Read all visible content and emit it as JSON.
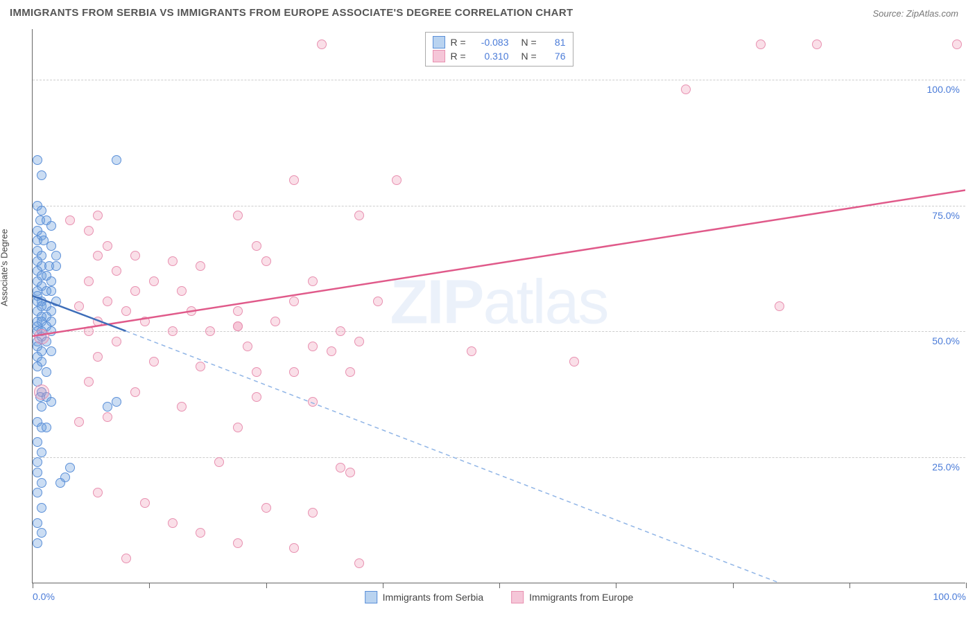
{
  "title": "IMMIGRANTS FROM SERBIA VS IMMIGRANTS FROM EUROPE ASSOCIATE'S DEGREE CORRELATION CHART",
  "source_label": "Source: ZipAtlas.com",
  "watermark": {
    "prefix": "ZIP",
    "suffix": "atlas"
  },
  "chart": {
    "type": "scatter",
    "xlim": [
      0,
      100
    ],
    "ylim": [
      0,
      110
    ],
    "y_gridlines": [
      25,
      50,
      75,
      100
    ],
    "y_tick_labels": [
      "25.0%",
      "50.0%",
      "75.0%",
      "100.0%"
    ],
    "x_ticks": [
      0,
      12.5,
      25,
      37.5,
      50,
      62.5,
      75,
      87.5,
      100
    ],
    "x_tick_labels": {
      "0": "0.0%",
      "100": "100.0%"
    },
    "ylabel": "Associate's Degree",
    "background_color": "#ffffff",
    "border_color": "#666666",
    "grid_color": "#cccccc",
    "axis_label_color": "#4a7bd8",
    "point_radius_small": 7,
    "point_radius_large": 11,
    "series": [
      {
        "name": "Immigrants from Serbia",
        "color_fill": "rgba(106,158,222,0.35)",
        "color_stroke": "#5a8fd8",
        "swatch_fill": "#b9d3f0",
        "swatch_stroke": "#5a8fd8",
        "R": "-0.083",
        "N": "81",
        "trend": {
          "x1": 0,
          "y1": 57,
          "x2_solid": 10,
          "y2_solid": 50,
          "x2": 80,
          "y2": 0,
          "dash": true,
          "stroke_solid": "#3d6db8",
          "stroke_dash": "#8fb4e6",
          "width": 2
        },
        "points": [
          [
            0.5,
            84
          ],
          [
            9,
            84
          ],
          [
            1,
            81
          ],
          [
            0.5,
            75
          ],
          [
            1,
            74
          ],
          [
            0.8,
            72
          ],
          [
            1.5,
            72
          ],
          [
            2,
            71
          ],
          [
            0.5,
            70
          ],
          [
            1,
            69
          ],
          [
            0.5,
            68
          ],
          [
            1.2,
            68
          ],
          [
            2,
            67
          ],
          [
            0.5,
            66
          ],
          [
            1,
            65
          ],
          [
            2.5,
            65
          ],
          [
            0.5,
            64
          ],
          [
            1,
            63
          ],
          [
            1.8,
            63
          ],
          [
            2.5,
            63
          ],
          [
            0.5,
            62
          ],
          [
            1,
            61
          ],
          [
            1.5,
            61
          ],
          [
            2,
            60
          ],
          [
            0.5,
            60
          ],
          [
            1,
            59
          ],
          [
            0.5,
            58
          ],
          [
            1.5,
            58
          ],
          [
            2,
            58
          ],
          [
            0.5,
            57
          ],
          [
            1,
            56
          ],
          [
            2.5,
            56
          ],
          [
            0.5,
            56
          ],
          [
            1,
            55
          ],
          [
            1.5,
            55
          ],
          [
            2,
            54
          ],
          [
            0.5,
            54
          ],
          [
            1,
            53
          ],
          [
            1.5,
            53
          ],
          [
            0.5,
            52
          ],
          [
            1,
            52
          ],
          [
            2,
            52
          ],
          [
            0.5,
            51
          ],
          [
            1.5,
            51
          ],
          [
            1,
            50
          ],
          [
            0.5,
            50
          ],
          [
            2,
            50
          ],
          [
            1,
            49
          ],
          [
            0.5,
            48
          ],
          [
            1.5,
            48
          ],
          [
            0.5,
            47
          ],
          [
            1,
            46
          ],
          [
            2,
            46
          ],
          [
            0.5,
            45
          ],
          [
            1,
            44
          ],
          [
            0.5,
            43
          ],
          [
            1.5,
            42
          ],
          [
            0.5,
            40
          ],
          [
            1,
            38
          ],
          [
            0.8,
            37
          ],
          [
            1.5,
            37
          ],
          [
            2,
            36
          ],
          [
            9,
            36
          ],
          [
            8,
            35
          ],
          [
            1,
            35
          ],
          [
            0.5,
            32
          ],
          [
            1,
            31
          ],
          [
            1.5,
            31
          ],
          [
            0.5,
            28
          ],
          [
            1,
            26
          ],
          [
            0.5,
            24
          ],
          [
            4,
            23
          ],
          [
            0.5,
            22
          ],
          [
            3.5,
            21
          ],
          [
            3,
            20
          ],
          [
            1,
            20
          ],
          [
            0.5,
            18
          ],
          [
            1,
            15
          ],
          [
            0.5,
            12
          ],
          [
            1,
            10
          ],
          [
            0.5,
            8
          ]
        ]
      },
      {
        "name": "Immigrants from Europe",
        "color_fill": "rgba(240,150,180,0.30)",
        "color_stroke": "#e890b0",
        "swatch_fill": "#f5c6d8",
        "swatch_stroke": "#e890b0",
        "R": "0.310",
        "N": "76",
        "trend": {
          "x1": 0,
          "y1": 49,
          "x2": 100,
          "y2": 78,
          "dash": false,
          "stroke": "#e05a8a",
          "width": 2.5
        },
        "points": [
          [
            31,
            107
          ],
          [
            99,
            107
          ],
          [
            84,
            107
          ],
          [
            70,
            98
          ],
          [
            78,
            107
          ],
          [
            28,
            80
          ],
          [
            39,
            80
          ],
          [
            35,
            73
          ],
          [
            7,
            73
          ],
          [
            22,
            73
          ],
          [
            4,
            72
          ],
          [
            6,
            70
          ],
          [
            8,
            67
          ],
          [
            24,
            67
          ],
          [
            7,
            65
          ],
          [
            11,
            65
          ],
          [
            15,
            64
          ],
          [
            25,
            64
          ],
          [
            18,
            63
          ],
          [
            9,
            62
          ],
          [
            6,
            60
          ],
          [
            13,
            60
          ],
          [
            30,
            60
          ],
          [
            11,
            58
          ],
          [
            16,
            58
          ],
          [
            8,
            56
          ],
          [
            28,
            56
          ],
          [
            37,
            56
          ],
          [
            80,
            55
          ],
          [
            5,
            55
          ],
          [
            10,
            54
          ],
          [
            17,
            54
          ],
          [
            22,
            54
          ],
          [
            7,
            52
          ],
          [
            12,
            52
          ],
          [
            26,
            52
          ],
          [
            22,
            51
          ],
          [
            22,
            51
          ],
          [
            6,
            50
          ],
          [
            15,
            50
          ],
          [
            19,
            50
          ],
          [
            33,
            50
          ],
          [
            9,
            48
          ],
          [
            35,
            48
          ],
          [
            23,
            47
          ],
          [
            30,
            47
          ],
          [
            32,
            46
          ],
          [
            47,
            46
          ],
          [
            7,
            45
          ],
          [
            13,
            44
          ],
          [
            58,
            44
          ],
          [
            18,
            43
          ],
          [
            24,
            42
          ],
          [
            28,
            42
          ],
          [
            34,
            42
          ],
          [
            6,
            40
          ],
          [
            11,
            38
          ],
          [
            24,
            37
          ],
          [
            30,
            36
          ],
          [
            16,
            35
          ],
          [
            8,
            33
          ],
          [
            5,
            32
          ],
          [
            22,
            31
          ],
          [
            20,
            24
          ],
          [
            33,
            23
          ],
          [
            34,
            22
          ],
          [
            7,
            18
          ],
          [
            12,
            16
          ],
          [
            25,
            15
          ],
          [
            30,
            14
          ],
          [
            15,
            12
          ],
          [
            18,
            10
          ],
          [
            22,
            8
          ],
          [
            28,
            7
          ],
          [
            10,
            5
          ],
          [
            35,
            4
          ]
        ],
        "large_points": [
          [
            1,
            49
          ],
          [
            1,
            38
          ]
        ]
      }
    ]
  },
  "legend_top_labels": {
    "R": "R =",
    "N": "N ="
  },
  "legend_bottom": [
    {
      "label": "Immigrants from Serbia",
      "fill": "#b9d3f0",
      "stroke": "#5a8fd8"
    },
    {
      "label": "Immigrants from Europe",
      "fill": "#f5c6d8",
      "stroke": "#e890b0"
    }
  ]
}
